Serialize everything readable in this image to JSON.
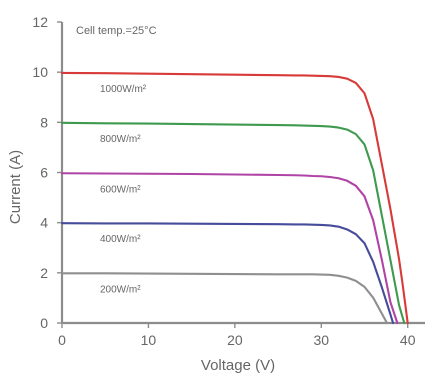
{
  "chart_data": {
    "type": "line",
    "annotation": "Cell temp.=25°C",
    "xlabel": "Voltage (V)",
    "ylabel": "Current (A)",
    "xlim": [
      0,
      42
    ],
    "ylim": [
      0,
      12
    ],
    "xticks": [
      0,
      10,
      20,
      30,
      40
    ],
    "yticks": [
      0,
      2,
      4,
      6,
      8,
      10,
      12
    ],
    "grid": false,
    "series": [
      {
        "name": "1000W/m²",
        "color": "#d73a38",
        "x": [
          0,
          5,
          10,
          15,
          20,
          25,
          27,
          28,
          29,
          30,
          31,
          32,
          33,
          34,
          35,
          36,
          37,
          38,
          39,
          39.4,
          40
        ],
        "y": [
          9.97,
          9.96,
          9.94,
          9.92,
          9.9,
          9.88,
          9.87,
          9.87,
          9.86,
          9.85,
          9.84,
          9.81,
          9.74,
          9.57,
          9.16,
          8.13,
          6.34,
          4.54,
          2.54,
          1.57,
          0
        ]
      },
      {
        "name": "800W/m²",
        "color": "#3f9a4f",
        "x": [
          0,
          5,
          10,
          15,
          20,
          25,
          27,
          28,
          29,
          30,
          31,
          32,
          33,
          34,
          35,
          36,
          37,
          38,
          39,
          39.6
        ],
        "y": [
          7.98,
          7.96,
          7.95,
          7.93,
          7.91,
          7.89,
          7.88,
          7.87,
          7.86,
          7.85,
          7.83,
          7.79,
          7.71,
          7.53,
          7.12,
          6.09,
          4.3,
          2.51,
          0.71,
          0
        ]
      },
      {
        "name": "600W/m²",
        "color": "#b043a6",
        "x": [
          0,
          5,
          10,
          15,
          20,
          25,
          27,
          28,
          29,
          30,
          31,
          32,
          33,
          34,
          35,
          36,
          37,
          38,
          38.8
        ],
        "y": [
          5.97,
          5.96,
          5.95,
          5.94,
          5.92,
          5.9,
          5.89,
          5.88,
          5.86,
          5.85,
          5.82,
          5.77,
          5.67,
          5.47,
          5.05,
          4.1,
          2.53,
          0.83,
          0
        ]
      },
      {
        "name": "400W/m²",
        "color": "#464b9a",
        "x": [
          0,
          5,
          10,
          15,
          20,
          25,
          27,
          28,
          29,
          30,
          31,
          32,
          33,
          34,
          35,
          36,
          37,
          38,
          38.3
        ],
        "y": [
          3.98,
          3.97,
          3.97,
          3.96,
          3.95,
          3.94,
          3.93,
          3.93,
          3.92,
          3.91,
          3.89,
          3.84,
          3.73,
          3.54,
          3.18,
          2.44,
          1.43,
          0.34,
          0
        ]
      },
      {
        "name": "200W/m²",
        "color": "#8f8f8f",
        "x": [
          0,
          5,
          10,
          15,
          20,
          25,
          27,
          28,
          29,
          30,
          31,
          32,
          33,
          34,
          35,
          36,
          37,
          37.6
        ],
        "y": [
          1.98,
          1.98,
          1.97,
          1.96,
          1.95,
          1.94,
          1.94,
          1.94,
          1.94,
          1.93,
          1.92,
          1.88,
          1.81,
          1.68,
          1.44,
          1.01,
          0.38,
          0
        ]
      }
    ]
  }
}
